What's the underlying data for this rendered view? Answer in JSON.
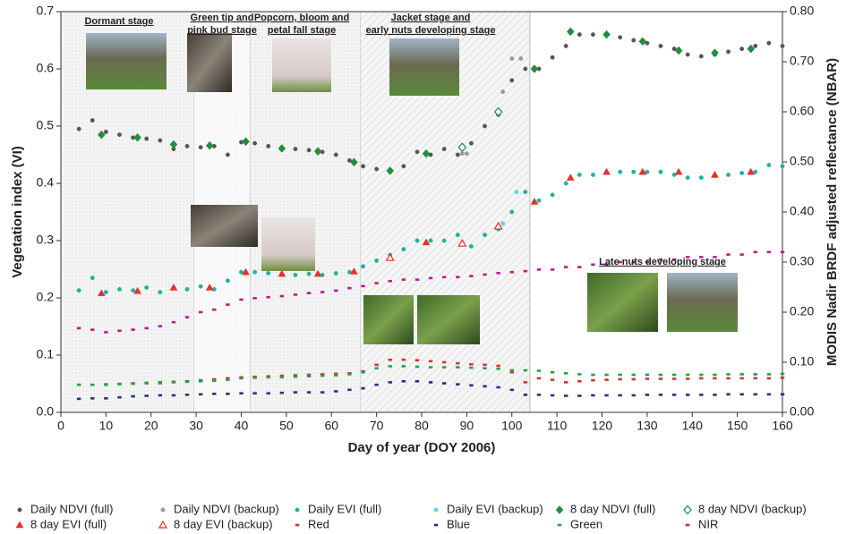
{
  "chart_data": {
    "type": "scatter",
    "xlabel": "Day of year (DOY 2006)",
    "ylabel": "Vegetation index (VI)",
    "y2label": "MODIS Nadir BRDF adjusted reflectance (NBAR)",
    "xlim": [
      0,
      160
    ],
    "xticks": [
      0,
      10,
      20,
      30,
      40,
      50,
      60,
      70,
      80,
      90,
      100,
      110,
      120,
      130,
      140,
      150,
      160
    ],
    "ylim": [
      0,
      0.7
    ],
    "yticks": [
      {
        "value": 0,
        "label": "0.0"
      },
      0.1,
      0.2,
      0.3,
      0.4,
      0.5,
      0.6,
      0.7
    ],
    "y2lim": [
      0,
      0.8
    ],
    "y2ticks": [
      {
        "value": 0,
        "label": "0.00"
      },
      {
        "value": 0.1,
        "label": "0.10"
      },
      {
        "value": 0.2,
        "label": "0.20"
      },
      {
        "value": 0.3,
        "label": "0.30"
      },
      {
        "value": 0.4,
        "label": "0.40"
      },
      {
        "value": 0.5,
        "label": "0.50"
      },
      {
        "value": 0.6,
        "label": "0.60"
      },
      {
        "value": 0.7,
        "label": "0.70"
      },
      {
        "value": 0.8,
        "label": "0.80"
      }
    ],
    "stage_boundaries": [
      29.5,
      42,
      66.5,
      104
    ],
    "annotations": [
      [
        "Dormant stage"
      ],
      [
        "Green tip and",
        "pink bud stage"
      ],
      [
        "Popcorn, bloom and",
        "petal fall stage"
      ],
      [
        "Jacket stage and",
        "early nuts developing stage"
      ],
      [
        "Late nuts developing stage"
      ]
    ],
    "x": [
      4,
      7,
      10,
      13,
      16,
      19,
      22,
      25,
      28,
      31,
      34,
      37,
      40,
      43,
      46,
      49,
      52,
      55,
      58,
      61,
      64,
      67,
      70,
      73,
      76,
      79,
      82,
      85,
      88,
      91,
      94,
      97,
      100,
      103,
      106,
      109,
      112,
      115,
      118,
      121,
      124,
      127,
      130,
      133,
      136,
      139,
      142,
      145,
      148,
      151,
      154,
      157,
      160
    ],
    "series": [
      {
        "name": "Daily NDVI (full)",
        "color": "#555555",
        "marker": "dot",
        "filled": true,
        "values": [
          0.495,
          0.51,
          0.49,
          0.485,
          0.48,
          0.478,
          0.475,
          0.46,
          0.465,
          0.463,
          0.465,
          0.45,
          0.472,
          0.47,
          0.465,
          0.462,
          0.46,
          0.458,
          0.455,
          0.45,
          0.44,
          0.43,
          0.425,
          0.42,
          0.43,
          0.455,
          0.45,
          0.46,
          0.45,
          0.47,
          0.5,
          0.52,
          0.58,
          0.6,
          0.6,
          0.62,
          0.64,
          0.66,
          0.66,
          0.66,
          0.655,
          0.65,
          0.645,
          0.64,
          0.635,
          0.625,
          0.622,
          0.625,
          0.63,
          0.635,
          0.64,
          0.645,
          0.64
        ]
      },
      {
        "name": "Daily NDVI (backup)",
        "color": "#9a9a9a",
        "marker": "dot",
        "filled": true,
        "x": [
          89,
          90,
          98,
          100,
          102
        ],
        "values": [
          0.452,
          0.452,
          0.56,
          0.618,
          0.618
        ]
      },
      {
        "name": "Daily EVI (full)",
        "color": "#1bb3a5",
        "marker": "dot",
        "filled": true,
        "values": [
          0.213,
          0.235,
          0.21,
          0.215,
          0.213,
          0.218,
          0.21,
          0.218,
          0.215,
          0.22,
          0.215,
          0.23,
          0.245,
          0.245,
          0.243,
          0.242,
          0.24,
          0.242,
          0.24,
          0.243,
          0.245,
          0.255,
          0.265,
          0.275,
          0.285,
          0.3,
          0.3,
          0.3,
          0.31,
          0.29,
          0.31,
          0.32,
          0.35,
          0.385,
          0.37,
          0.38,
          0.4,
          0.415,
          0.415,
          0.42,
          0.42,
          0.42,
          0.42,
          0.42,
          0.415,
          0.41,
          0.41,
          0.413,
          0.415,
          0.418,
          0.42,
          0.432,
          0.43
        ]
      },
      {
        "name": "Daily EVI (backup)",
        "color": "#5fd6ea",
        "marker": "dot",
        "filled": true,
        "x": [
          98,
          101
        ],
        "values": [
          0.33,
          0.385
        ]
      },
      {
        "name": "8 day NDVI (full)",
        "color": "#1e8f3e",
        "marker": "diamond",
        "filled": true,
        "x": [
          9,
          17,
          25,
          33,
          41,
          49,
          57,
          65,
          73,
          81,
          105,
          113,
          121,
          129,
          137,
          145,
          153
        ],
        "values": [
          0.485,
          0.48,
          0.468,
          0.466,
          0.473,
          0.461,
          0.456,
          0.437,
          0.422,
          0.452,
          0.6,
          0.665,
          0.66,
          0.648,
          0.632,
          0.628,
          0.635
        ]
      },
      {
        "name": "8 day NDVI (backup)",
        "color": "#1e8f3e",
        "marker": "diamond",
        "filled": false,
        "x": [
          89,
          97
        ],
        "values": [
          0.463,
          0.525
        ]
      },
      {
        "name": "8 day EVI (full)",
        "color": "#e8312a",
        "marker": "triangle",
        "filled": true,
        "x": [
          9,
          17,
          25,
          33,
          41,
          49,
          57,
          65,
          81,
          105,
          113,
          121,
          129,
          137,
          145,
          153
        ],
        "values": [
          0.208,
          0.212,
          0.218,
          0.218,
          0.245,
          0.242,
          0.242,
          0.246,
          0.297,
          0.368,
          0.41,
          0.42,
          0.42,
          0.42,
          0.415,
          0.42
        ]
      },
      {
        "name": "8 day EVI (backup)",
        "color": "#e8312a",
        "marker": "triangle",
        "filled": false,
        "x": [
          73,
          89,
          97
        ],
        "values": [
          0.27,
          0.295,
          0.325
        ]
      },
      {
        "name": "Red",
        "color": "#e0302b",
        "marker": "dash",
        "filled": true,
        "axis": "y2",
        "values": [
          0.055,
          0.055,
          0.056,
          0.057,
          0.058,
          0.059,
          0.06,
          0.061,
          0.062,
          0.064,
          0.066,
          0.068,
          0.07,
          0.071,
          0.072,
          0.073,
          0.074,
          0.075,
          0.076,
          0.077,
          0.078,
          0.082,
          0.095,
          0.105,
          0.105,
          0.104,
          0.102,
          0.1,
          0.098,
          0.096,
          0.095,
          0.093,
          0.08,
          0.06,
          0.068,
          0.065,
          0.06,
          0.062,
          0.064,
          0.065,
          0.066,
          0.066,
          0.067,
          0.067,
          0.067,
          0.067,
          0.068,
          0.068,
          0.068,
          0.068,
          0.068,
          0.068,
          0.069
        ]
      },
      {
        "name": "Blue",
        "color": "#2b2b8c",
        "marker": "dash",
        "filled": true,
        "axis": "y2",
        "values": [
          0.027,
          0.028,
          0.028,
          0.03,
          0.032,
          0.033,
          0.034,
          0.034,
          0.035,
          0.036,
          0.037,
          0.037,
          0.038,
          0.038,
          0.038,
          0.039,
          0.04,
          0.04,
          0.04,
          0.042,
          0.045,
          0.048,
          0.055,
          0.06,
          0.062,
          0.062,
          0.06,
          0.058,
          0.056,
          0.054,
          0.052,
          0.05,
          0.045,
          0.035,
          0.035,
          0.034,
          0.033,
          0.033,
          0.034,
          0.034,
          0.034,
          0.034,
          0.035,
          0.035,
          0.035,
          0.035,
          0.035,
          0.035,
          0.036,
          0.036,
          0.036,
          0.036,
          0.036
        ]
      },
      {
        "name": "Green",
        "color": "#21a34a",
        "marker": "dash",
        "filled": true,
        "axis": "y2",
        "values": [
          0.055,
          0.055,
          0.055,
          0.056,
          0.057,
          0.058,
          0.058,
          0.06,
          0.061,
          0.062,
          0.063,
          0.065,
          0.068,
          0.069,
          0.07,
          0.07,
          0.071,
          0.072,
          0.073,
          0.074,
          0.076,
          0.08,
          0.088,
          0.092,
          0.092,
          0.091,
          0.09,
          0.09,
          0.09,
          0.089,
          0.088,
          0.087,
          0.084,
          0.084,
          0.083,
          0.08,
          0.078,
          0.076,
          0.075,
          0.075,
          0.075,
          0.075,
          0.075,
          0.075,
          0.075,
          0.075,
          0.075,
          0.075,
          0.076,
          0.076,
          0.076,
          0.076,
          0.077
        ]
      },
      {
        "name": "NIR",
        "color": "#c0188f",
        "marker": "dash",
        "filled": true,
        "axis": "y2",
        "values": [
          0.168,
          0.165,
          0.16,
          0.163,
          0.165,
          0.168,
          0.172,
          0.18,
          0.19,
          0.2,
          0.205,
          0.215,
          0.225,
          0.228,
          0.23,
          0.232,
          0.235,
          0.238,
          0.24,
          0.243,
          0.248,
          0.252,
          0.258,
          0.262,
          0.265,
          0.265,
          0.268,
          0.27,
          0.27,
          0.272,
          0.275,
          0.278,
          0.28,
          0.282,
          0.285,
          0.285,
          0.29,
          0.29,
          0.295,
          0.295,
          0.3,
          0.3,
          0.3,
          0.305,
          0.305,
          0.31,
          0.31,
          0.31,
          0.315,
          0.315,
          0.32,
          0.32,
          0.32
        ]
      }
    ]
  }
}
